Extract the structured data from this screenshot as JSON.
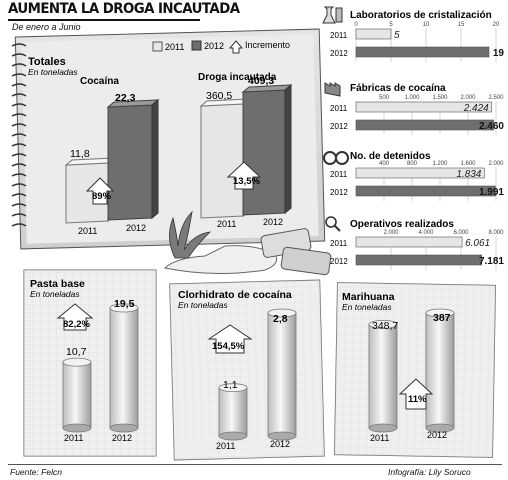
{
  "header": {
    "title": "AUMENTA LA DROGA INCAUTADA",
    "subtitle": "De enero a Junio"
  },
  "legend": {
    "label_2011": "2011",
    "label_2012": "2012",
    "label_increment": "Incremento"
  },
  "panels": {
    "totales": {
      "title": "Totales",
      "unit": "En toneladas",
      "sub1": "Cocaína",
      "sub2": "Droga incautada",
      "cocaina": {
        "v2011": "11,8",
        "v2012": "22,3",
        "inc": "89%"
      },
      "droga": {
        "v2011": "360,5",
        "v2012": "409,3",
        "inc": "13,5%"
      }
    },
    "pasta": {
      "title": "Pasta base",
      "unit": "En toneladas",
      "v2011": "10,7",
      "v2012": "19,5",
      "inc": "82,2%"
    },
    "clorh": {
      "title": "Clorhidrato de cocaína",
      "unit": "En toneladas",
      "v2011": "1,1",
      "v2012": "2,8",
      "inc": "154,5%"
    },
    "mari": {
      "title": "Marihuana",
      "unit": "En toneladas",
      "v2011": "348,7",
      "v2012": "387",
      "inc": "11%"
    }
  },
  "years": {
    "y1": "2011",
    "y2": "2012"
  },
  "hbars": {
    "labs": {
      "title": "Laboratorios de cristalización",
      "ticks": [
        "0",
        "5",
        "10",
        "15",
        "20"
      ],
      "v2011": "5",
      "v2012": "19"
    },
    "fab": {
      "title": "Fábricas de cocaína",
      "ticks": [
        "500",
        "1.000",
        "1.500",
        "2.000",
        "2.500"
      ],
      "v2011": "2.424",
      "v2012": "2.460"
    },
    "det": {
      "title": "No. de detenidos",
      "ticks": [
        "400",
        "800",
        "1.200",
        "1.600",
        "2.000"
      ],
      "v2011": "1.834",
      "v2012": "1.991"
    },
    "ops": {
      "title": "Operativos realizados",
      "ticks": [
        "2.000",
        "4.000",
        "6.000",
        "8.000"
      ],
      "v2011": "6.061",
      "v2012": "7.181"
    }
  },
  "footer": {
    "source": "Fuente: Felcn",
    "credit": "Infografía: Lily Soruco"
  },
  "colors": {
    "bar2011": "#e6e6e6",
    "bar2012": "#6e6e6e",
    "panel": "#dcdcdc"
  },
  "chart_data": [
    {
      "type": "bar",
      "title": "Cocaína",
      "ylabel": "En toneladas",
      "categories": [
        "2011",
        "2012"
      ],
      "values": [
        11.8,
        22.3
      ]
    },
    {
      "type": "bar",
      "title": "Droga incautada",
      "ylabel": "En toneladas",
      "categories": [
        "2011",
        "2012"
      ],
      "values": [
        360.5,
        409.3
      ]
    },
    {
      "type": "bar",
      "title": "Pasta base",
      "ylabel": "En toneladas",
      "categories": [
        "2011",
        "2012"
      ],
      "values": [
        10.7,
        19.5
      ]
    },
    {
      "type": "bar",
      "title": "Clorhidrato de cocaína",
      "ylabel": "En toneladas",
      "categories": [
        "2011",
        "2012"
      ],
      "values": [
        1.1,
        2.8
      ]
    },
    {
      "type": "bar",
      "title": "Marihuana",
      "ylabel": "En toneladas",
      "categories": [
        "2011",
        "2012"
      ],
      "values": [
        348.7,
        387
      ]
    },
    {
      "type": "bar",
      "title": "Laboratorios de cristalización",
      "categories": [
        "2011",
        "2012"
      ],
      "values": [
        5,
        19
      ],
      "xlim": [
        0,
        20
      ]
    },
    {
      "type": "bar",
      "title": "Fábricas de cocaína",
      "categories": [
        "2011",
        "2012"
      ],
      "values": [
        2424,
        2460
      ],
      "xlim": [
        0,
        2500
      ]
    },
    {
      "type": "bar",
      "title": "No. de detenidos",
      "categories": [
        "2011",
        "2012"
      ],
      "values": [
        1834,
        1991
      ],
      "xlim": [
        0,
        2000
      ]
    },
    {
      "type": "bar",
      "title": "Operativos realizados",
      "categories": [
        "2011",
        "2012"
      ],
      "values": [
        6061,
        7181
      ],
      "xlim": [
        0,
        8000
      ]
    }
  ]
}
